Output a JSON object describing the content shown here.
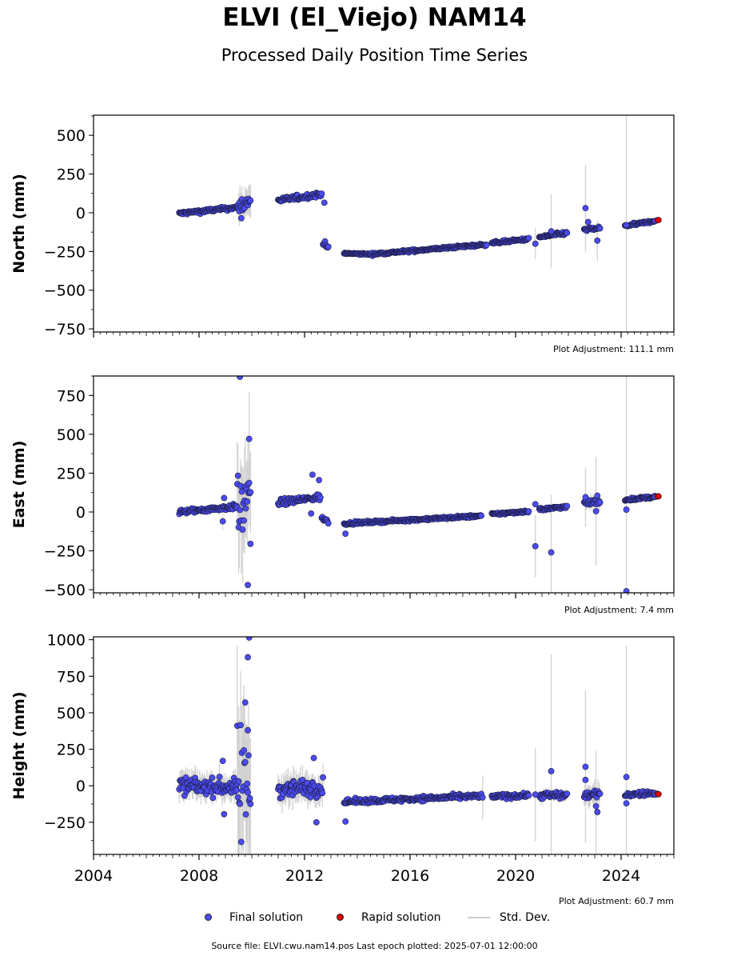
{
  "title": "ELVI (El_Viejo) NAM14",
  "subtitle": "Processed Daily Position Time Series",
  "source_line": "Source file: ELVI.cwu.nam14.pos  Last epoch plotted: 2025-07-01 12:00:00",
  "legend": {
    "final": "Final solution",
    "rapid": "Rapid solution",
    "stddev": "Std. Dev."
  },
  "colors": {
    "final": "#4b4bf0",
    "rapid": "#e00000",
    "stddev": "#cfcfcf",
    "stddev_dark": "#8a8a8a"
  },
  "chart_data": [
    {
      "type": "scatter",
      "panel": "north",
      "ylabel": "North (mm)",
      "adjustment": "Plot Adjustment: 111.1 mm",
      "xlim": [
        2004,
        2026
      ],
      "ylim": [
        -770,
        630
      ],
      "yticks": [
        500,
        250,
        0,
        -250,
        -500,
        -750
      ],
      "ytick_labels": [
        "500",
        "250",
        "0",
        "−250",
        "−500",
        "−750"
      ],
      "segments": [
        {
          "x0": 2007.25,
          "x1": 2009.5,
          "y0": -5,
          "y1": 35,
          "noise": 6,
          "err": 10
        },
        {
          "x0": 2009.5,
          "x1": 2009.95,
          "y0": 40,
          "y1": 80,
          "noise": 25,
          "err": 80
        },
        {
          "x0": 2011.0,
          "x1": 2012.65,
          "y0": 80,
          "y1": 120,
          "noise": 8,
          "err": 12
        },
        {
          "x0": 2012.7,
          "x1": 2012.9,
          "y0": -190,
          "y1": -230,
          "noise": 8,
          "err": 12
        },
        {
          "x0": 2013.5,
          "x1": 2014.5,
          "y0": -262,
          "y1": -268,
          "noise": 3,
          "err": 8
        },
        {
          "x0": 2014.5,
          "x1": 2018.9,
          "y0": -268,
          "y1": -205,
          "noise": 4,
          "err": 8
        },
        {
          "x0": 2019.1,
          "x1": 2020.5,
          "y0": -195,
          "y1": -170,
          "noise": 4,
          "err": 8
        },
        {
          "x0": 2020.9,
          "x1": 2021.95,
          "y0": -158,
          "y1": -130,
          "noise": 5,
          "err": 10
        },
        {
          "x0": 2022.6,
          "x1": 2023.2,
          "y0": -110,
          "y1": -100,
          "noise": 6,
          "err": 14
        },
        {
          "x0": 2024.15,
          "x1": 2025.3,
          "y0": -85,
          "y1": -52,
          "noise": 4,
          "err": 8
        }
      ],
      "outliers": [
        {
          "x": 2009.6,
          "y": -35,
          "err": 0
        },
        {
          "x": 2012.75,
          "y": 65,
          "err": 0
        },
        {
          "x": 2020.75,
          "y": -200,
          "err": 100
        },
        {
          "x": 2021.35,
          "y": -120,
          "err": 240
        },
        {
          "x": 2022.65,
          "y": 30,
          "err": 280
        },
        {
          "x": 2022.75,
          "y": -60,
          "err": 0
        },
        {
          "x": 2023.1,
          "y": -180,
          "err": 130
        },
        {
          "x": 2024.2,
          "y": -80,
          "err": 700
        }
      ],
      "rapid": [
        {
          "x": 2025.38,
          "y": -48
        },
        {
          "x": 2025.42,
          "y": -47
        }
      ]
    },
    {
      "type": "scatter",
      "panel": "east",
      "ylabel": "East (mm)",
      "adjustment": "Plot Adjustment: 7.4 mm",
      "xlim": [
        2004,
        2026
      ],
      "ylim": [
        -520,
        875
      ],
      "yticks": [
        750,
        500,
        250,
        0,
        -250,
        -500
      ],
      "ytick_labels": [
        "750",
        "500",
        "250",
        "0",
        "−250",
        "−500"
      ],
      "segments": [
        {
          "x0": 2007.25,
          "x1": 2009.45,
          "y0": 0,
          "y1": 35,
          "noise": 8,
          "err": 14
        },
        {
          "x0": 2009.45,
          "x1": 2009.95,
          "y0": 30,
          "y1": 60,
          "noise": 110,
          "err": 250
        },
        {
          "x0": 2011.0,
          "x1": 2012.6,
          "y0": 60,
          "y1": 95,
          "noise": 10,
          "err": 20
        },
        {
          "x0": 2012.65,
          "x1": 2012.9,
          "y0": -40,
          "y1": -60,
          "noise": 8,
          "err": 12
        },
        {
          "x0": 2013.5,
          "x1": 2018.7,
          "y0": -75,
          "y1": -25,
          "noise": 4,
          "err": 8
        },
        {
          "x0": 2019.1,
          "x1": 2020.5,
          "y0": -15,
          "y1": 5,
          "noise": 4,
          "err": 8
        },
        {
          "x0": 2020.9,
          "x1": 2021.95,
          "y0": 15,
          "y1": 35,
          "noise": 5,
          "err": 10
        },
        {
          "x0": 2022.6,
          "x1": 2023.2,
          "y0": 55,
          "y1": 70,
          "noise": 10,
          "err": 40
        },
        {
          "x0": 2024.15,
          "x1": 2025.3,
          "y0": 78,
          "y1": 98,
          "noise": 4,
          "err": 8
        }
      ],
      "outliers": [
        {
          "x": 2008.95,
          "y": 90,
          "err": 0
        },
        {
          "x": 2008.9,
          "y": -60,
          "err": 60
        },
        {
          "x": 2009.55,
          "y": 870,
          "err": 0
        },
        {
          "x": 2009.9,
          "y": 470,
          "err": 300
        },
        {
          "x": 2009.85,
          "y": -470,
          "err": 0
        },
        {
          "x": 2009.95,
          "y": -205,
          "err": 0
        },
        {
          "x": 2012.3,
          "y": 240,
          "err": 0
        },
        {
          "x": 2012.55,
          "y": 205,
          "err": 0
        },
        {
          "x": 2012.25,
          "y": -10,
          "err": 0
        },
        {
          "x": 2013.55,
          "y": -140,
          "err": 0
        },
        {
          "x": 2020.75,
          "y": -220,
          "err": 200
        },
        {
          "x": 2020.75,
          "y": 50,
          "err": 0
        },
        {
          "x": 2021.35,
          "y": -260,
          "err": 370
        },
        {
          "x": 2022.65,
          "y": 95,
          "err": 190
        },
        {
          "x": 2023.05,
          "y": 5,
          "err": 350
        },
        {
          "x": 2023.1,
          "y": 105,
          "err": 0
        },
        {
          "x": 2024.2,
          "y": 15,
          "err": 900
        },
        {
          "x": 2024.2,
          "y": -510,
          "err": 0
        }
      ],
      "rapid": [
        {
          "x": 2025.38,
          "y": 100
        },
        {
          "x": 2025.42,
          "y": 101
        }
      ]
    },
    {
      "type": "scatter",
      "panel": "height",
      "ylabel": "Height (mm)",
      "adjustment": "Plot Adjustment: 60.7 mm",
      "xlim": [
        2004,
        2026
      ],
      "ylim": [
        -470,
        1020
      ],
      "yticks": [
        1000,
        750,
        500,
        250,
        0,
        -250
      ],
      "ytick_labels": [
        "1000",
        "750",
        "500",
        "250",
        "0",
        "−250"
      ],
      "xticks": [
        2004,
        2008,
        2012,
        2016,
        2020,
        2024
      ],
      "xtick_labels": [
        "2004",
        "2008",
        "2012",
        "2016",
        "2020",
        "2024"
      ],
      "segments": [
        {
          "x0": 2007.25,
          "x1": 2009.45,
          "y0": 0,
          "y1": -10,
          "noise": 28,
          "err": 70
        },
        {
          "x0": 2009.45,
          "x1": 2009.95,
          "y0": 0,
          "y1": 0,
          "noise": 200,
          "err": 450
        },
        {
          "x0": 2011.0,
          "x1": 2012.7,
          "y0": -20,
          "y1": -10,
          "noise": 30,
          "err": 80
        },
        {
          "x0": 2013.5,
          "x1": 2018.7,
          "y0": -110,
          "y1": -70,
          "noise": 8,
          "err": 15
        },
        {
          "x0": 2019.1,
          "x1": 2020.5,
          "y0": -75,
          "y1": -65,
          "noise": 8,
          "err": 15
        },
        {
          "x0": 2020.9,
          "x1": 2021.95,
          "y0": -65,
          "y1": -65,
          "noise": 12,
          "err": 30
        },
        {
          "x0": 2022.6,
          "x1": 2023.2,
          "y0": -65,
          "y1": -60,
          "noise": 12,
          "err": 60
        },
        {
          "x0": 2024.15,
          "x1": 2025.3,
          "y0": -60,
          "y1": -50,
          "noise": 8,
          "err": 15
        }
      ],
      "outliers": [
        {
          "x": 2008.9,
          "y": 170,
          "err": 0
        },
        {
          "x": 2008.95,
          "y": -195,
          "err": 0
        },
        {
          "x": 2009.75,
          "y": 570,
          "err": 0
        },
        {
          "x": 2009.85,
          "y": 880,
          "err": 0
        },
        {
          "x": 2009.9,
          "y": 1015,
          "err": 0
        },
        {
          "x": 2009.85,
          "y": 380,
          "err": 0
        },
        {
          "x": 2012.35,
          "y": 190,
          "err": 0
        },
        {
          "x": 2012.45,
          "y": -250,
          "err": 0
        },
        {
          "x": 2013.55,
          "y": -245,
          "err": 0
        },
        {
          "x": 2018.75,
          "y": -80,
          "err": 150
        },
        {
          "x": 2020.75,
          "y": -60,
          "err": 320
        },
        {
          "x": 2021.35,
          "y": 100,
          "err": 800
        },
        {
          "x": 2022.65,
          "y": 130,
          "err": 520
        },
        {
          "x": 2022.65,
          "y": 40,
          "err": 0
        },
        {
          "x": 2023.05,
          "y": -140,
          "err": 380
        },
        {
          "x": 2023.1,
          "y": -180,
          "err": 0
        },
        {
          "x": 2024.2,
          "y": 60,
          "err": 900
        },
        {
          "x": 2024.2,
          "y": -120,
          "err": 0
        }
      ],
      "rapid": [
        {
          "x": 2025.38,
          "y": -55
        },
        {
          "x": 2025.42,
          "y": -58
        }
      ]
    }
  ]
}
